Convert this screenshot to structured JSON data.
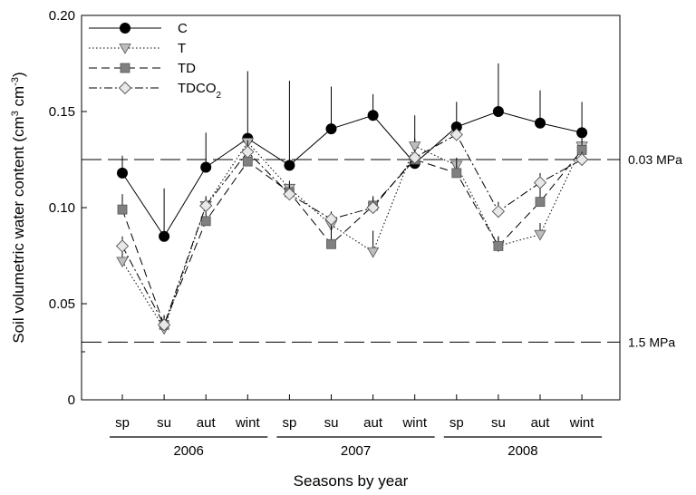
{
  "chart_data": {
    "type": "line",
    "xlabel": "Seasons by year",
    "ylabel": "Soil volumetric water content (cm³ cm⁻³)",
    "ylim": [
      0,
      0.2
    ],
    "yticks": [
      0,
      0.05,
      0.1,
      0.15,
      0.2
    ],
    "ytick_labels": [
      "0",
      "0.05",
      "0.10",
      "0.15",
      "0.20"
    ],
    "categories": [
      "sp",
      "su",
      "aut",
      "wint",
      "sp",
      "su",
      "aut",
      "wint",
      "sp",
      "su",
      "aut",
      "wint"
    ],
    "years": [
      "2006",
      "2007",
      "2008"
    ],
    "legend_position": "top-left",
    "series": [
      {
        "name": "C",
        "name_base": "C",
        "name_sub": "",
        "marker": "circle",
        "dash": "solid",
        "values": [
          0.118,
          0.085,
          0.121,
          0.136,
          0.122,
          0.141,
          0.148,
          0.123,
          0.142,
          0.15,
          0.144,
          0.139
        ],
        "error_upper": [
          0.127,
          0.11,
          0.139,
          0.171,
          0.166,
          0.163,
          0.159,
          0.148,
          0.155,
          0.175,
          0.161,
          0.155
        ]
      },
      {
        "name": "T",
        "name_base": "T",
        "name_sub": "",
        "marker": "triangle-down",
        "dash": "dotted",
        "values": [
          0.072,
          0.037,
          0.101,
          0.134,
          0.11,
          0.091,
          0.077,
          0.132,
          0.122,
          0.08,
          0.086,
          0.132
        ],
        "error_upper": [
          0.077,
          0.041,
          0.105,
          0.138,
          0.114,
          0.096,
          0.088,
          0.136,
          0.126,
          0.085,
          0.092,
          0.136
        ]
      },
      {
        "name": "TD",
        "name_base": "TD",
        "name_sub": "",
        "marker": "square",
        "dash": "dashed",
        "values": [
          0.099,
          0.039,
          0.093,
          0.124,
          0.108,
          0.081,
          0.101,
          0.125,
          0.118,
          0.08,
          0.103,
          0.13
        ],
        "error_upper": [
          0.107,
          0.044,
          0.099,
          0.13,
          0.112,
          0.091,
          0.106,
          0.13,
          0.124,
          0.085,
          0.11,
          0.136
        ]
      },
      {
        "name": "TDCO2",
        "name_base": "TDCO",
        "name_sub": "2",
        "marker": "diamond",
        "dash": "dashdot",
        "values": [
          0.08,
          0.039,
          0.101,
          0.129,
          0.107,
          0.094,
          0.1,
          0.126,
          0.138,
          0.098,
          0.113,
          0.125
        ],
        "error_upper": [
          0.085,
          0.044,
          0.106,
          0.135,
          0.112,
          0.098,
          0.105,
          0.13,
          0.142,
          0.103,
          0.118,
          0.129
        ]
      }
    ],
    "reference_lines": [
      {
        "y": 0.125,
        "label": "0.03 MPa"
      },
      {
        "y": 0.03,
        "label": "1.5 MPa"
      }
    ]
  }
}
